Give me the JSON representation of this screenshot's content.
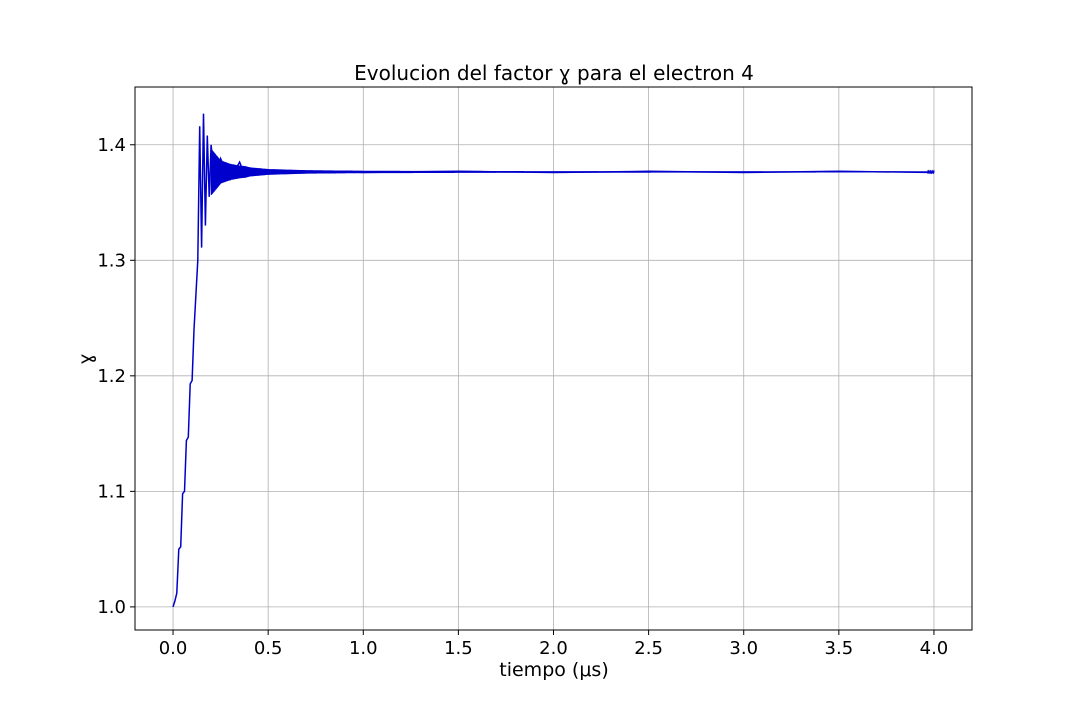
{
  "chart_data": {
    "type": "line",
    "title": "Evolucion del factor ɣ para el electron 4",
    "xlabel": "tiempo (μs)",
    "ylabel": "ɣ",
    "xlim": [
      -0.2,
      4.2
    ],
    "ylim": [
      0.98,
      1.45
    ],
    "xticks": [
      0.0,
      0.5,
      1.0,
      1.5,
      2.0,
      2.5,
      3.0,
      3.5,
      4.0
    ],
    "xtick_labels": [
      "0.0",
      "0.5",
      "1.0",
      "1.5",
      "2.0",
      "2.5",
      "3.0",
      "3.5",
      "4.0"
    ],
    "yticks": [
      1.0,
      1.1,
      1.2,
      1.3,
      1.4
    ],
    "ytick_labels": [
      "1.0",
      "1.1",
      "1.2",
      "1.3",
      "1.4"
    ],
    "grid": true,
    "series": [
      {
        "color": "#0000cc",
        "x": [
          0.0,
          0.01,
          0.02,
          0.03,
          0.04,
          0.05,
          0.06,
          0.07,
          0.08,
          0.09,
          0.1,
          0.11,
          0.12,
          0.13,
          0.14,
          0.15,
          0.16,
          0.17,
          0.18,
          0.19,
          0.2,
          0.22,
          0.25,
          0.3,
          0.35,
          0.38,
          0.4,
          0.5,
          0.7,
          1.0,
          1.5,
          2.0,
          2.5,
          3.0,
          3.5,
          4.0
        ],
        "y": [
          1.0,
          1.005,
          1.012,
          1.05,
          1.052,
          1.098,
          1.1,
          1.144,
          1.147,
          1.193,
          1.196,
          1.24,
          1.27,
          1.3,
          1.416,
          1.311,
          1.427,
          1.33,
          1.408,
          1.355,
          1.4,
          1.365,
          1.388,
          1.37,
          1.385,
          1.373,
          1.38,
          1.375,
          1.377,
          1.376,
          1.377,
          1.376,
          1.377,
          1.376,
          1.377,
          1.376
        ]
      }
    ]
  }
}
